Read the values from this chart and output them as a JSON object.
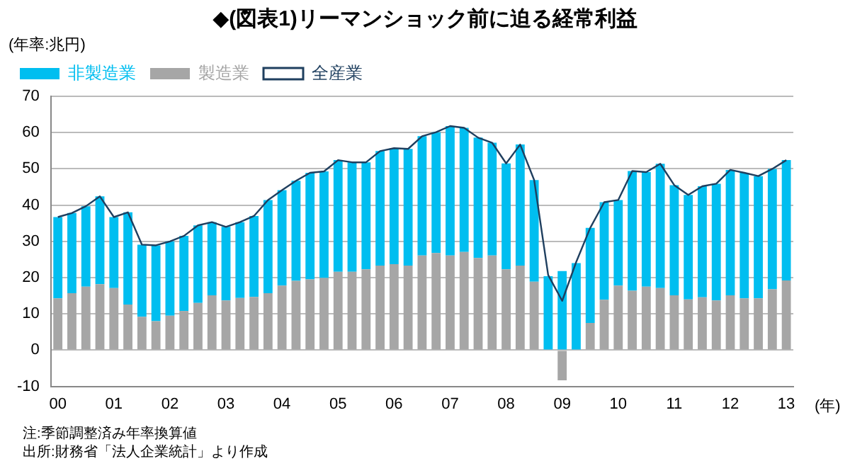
{
  "chart_data": {
    "type": "bar",
    "stacked": true,
    "title": "◆(図表1)リーマンショック前に迫る経常利益",
    "ylabel": "(年率:兆円)",
    "xlabel": "(年)",
    "categories": [
      "00",
      null,
      null,
      null,
      "01",
      null,
      null,
      null,
      "02",
      null,
      null,
      null,
      "03",
      null,
      null,
      null,
      "04",
      null,
      null,
      null,
      "05",
      null,
      null,
      null,
      "06",
      null,
      null,
      null,
      "07",
      null,
      null,
      null,
      "08",
      null,
      null,
      null,
      "09",
      null,
      null,
      null,
      "10",
      null,
      null,
      null,
      "11",
      null,
      null,
      null,
      "12",
      null,
      null,
      null,
      "13"
    ],
    "series": [
      {
        "name": "製造業",
        "color": "#a6a6a6",
        "values": [
          14.3,
          15.7,
          17.5,
          18.2,
          17.1,
          12.6,
          9.2,
          8.0,
          9.5,
          10.8,
          13.0,
          15.1,
          13.7,
          14.4,
          14.7,
          15.7,
          17.8,
          19.1,
          19.5,
          19.9,
          21.6,
          21.6,
          22.3,
          23.3,
          23.7,
          23.3,
          26.1,
          26.8,
          26.1,
          27.1,
          25.4,
          26.1,
          22.3,
          23.3,
          18.9,
          null,
          -8.3,
          null,
          7.5,
          13.9,
          17.8,
          16.4,
          17.5,
          17.1,
          15.1,
          14.0,
          14.6,
          13.7,
          15.1,
          14.3,
          14.3,
          16.8,
          19.2
        ]
      },
      {
        "name": "非製造業",
        "color": "#00bef0",
        "values": [
          22.4,
          22.1,
          22.2,
          24.2,
          19.6,
          25.4,
          19.9,
          20.9,
          20.5,
          20.7,
          21.4,
          20.2,
          20.3,
          20.9,
          22.3,
          25.7,
          26.3,
          27.6,
          29.4,
          29.4,
          30.8,
          30.2,
          29.5,
          31.6,
          32.0,
          32.2,
          32.9,
          33.3,
          35.7,
          34.2,
          33.2,
          31.1,
          29.2,
          33.4,
          28.0,
          20.4,
          21.8,
          24.0,
          26.2,
          26.9,
          23.6,
          33.0,
          31.6,
          34.3,
          30.4,
          28.8,
          30.6,
          32.2,
          34.6,
          34.6,
          33.7,
          33.2,
          33.2
        ]
      },
      {
        "name": "全産業",
        "type": "line",
        "color": "#1f3f5f",
        "values": [
          36.7,
          37.8,
          39.7,
          42.4,
          36.7,
          38.0,
          29.1,
          28.9,
          30.0,
          31.5,
          34.4,
          35.3,
          34.0,
          35.3,
          37.0,
          41.4,
          44.1,
          46.7,
          48.9,
          49.3,
          52.4,
          51.8,
          51.8,
          54.9,
          55.7,
          55.5,
          59.0,
          60.1,
          61.8,
          61.3,
          58.6,
          57.2,
          51.5,
          56.7,
          46.9,
          20.7,
          13.6,
          24.3,
          33.7,
          40.8,
          41.4,
          49.4,
          49.1,
          51.4,
          45.5,
          42.8,
          45.2,
          45.9,
          49.7,
          48.9,
          48.0,
          50.0,
          52.4
        ]
      }
    ],
    "ylim": [
      -10,
      70
    ],
    "yticks": [
      -10,
      0,
      10,
      20,
      30,
      40,
      50,
      60,
      70
    ],
    "grid": "y",
    "legend": "top left",
    "marker": "none",
    "line_style": "solid",
    "annotations": [
      "注:季節調整済み年率換算値",
      "出所:財務省「法人企業統計」より作成"
    ]
  }
}
